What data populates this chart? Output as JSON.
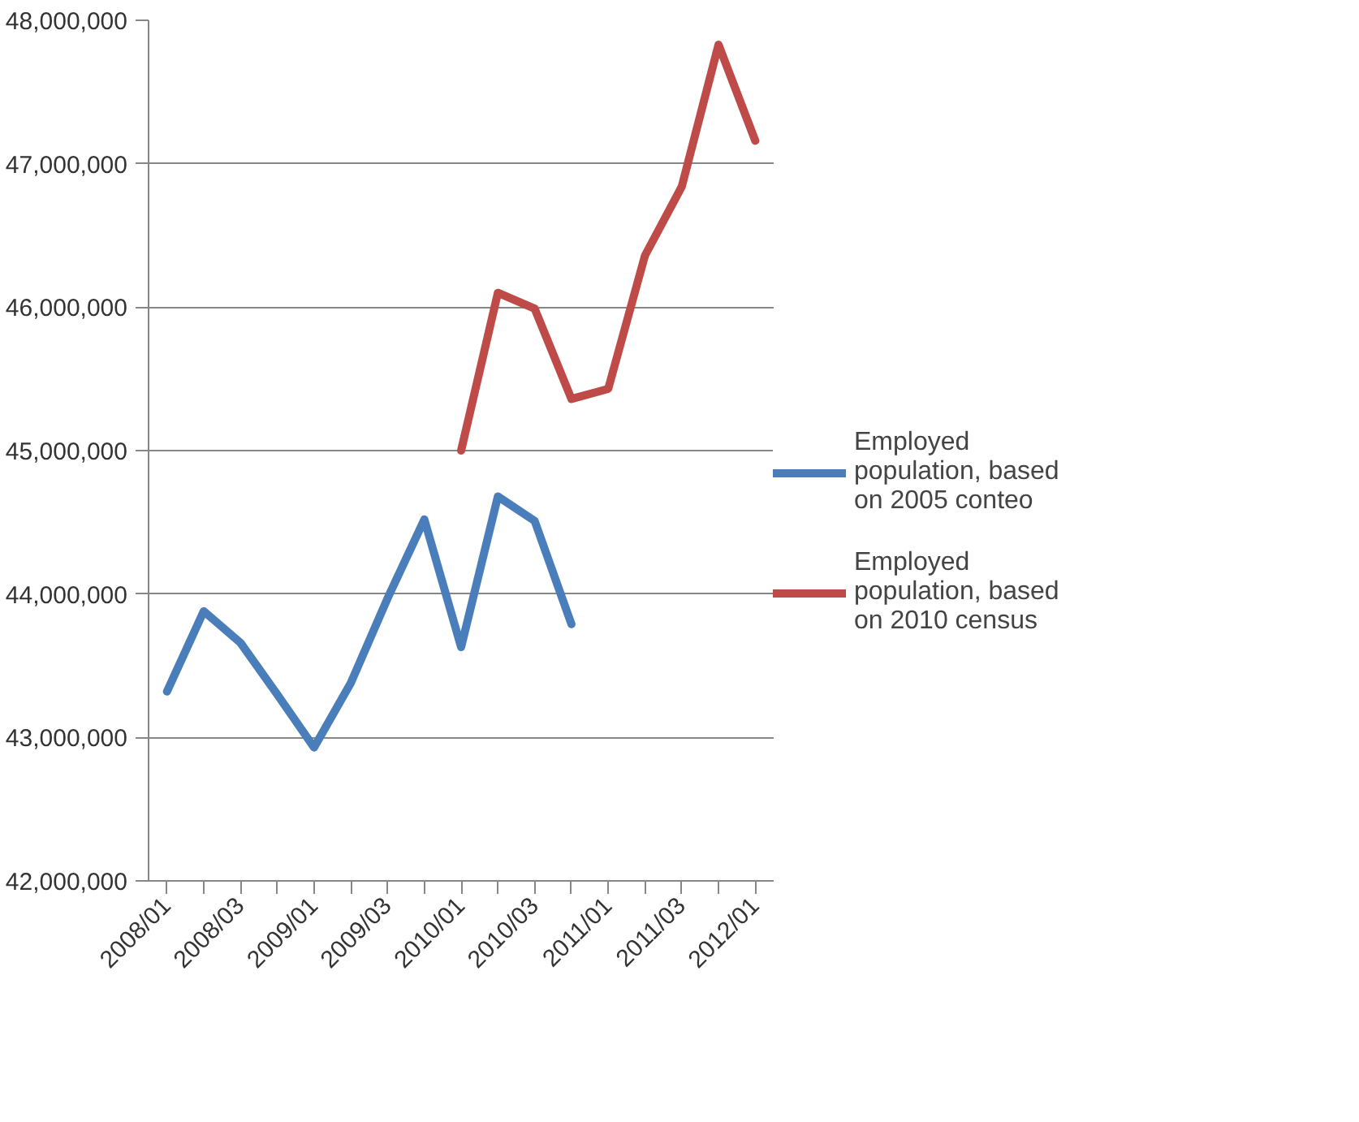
{
  "chart_data": {
    "type": "line",
    "categories": [
      "2008/01",
      null,
      "2008/03",
      null,
      "2009/01",
      null,
      "2009/03",
      null,
      "2010/01",
      null,
      "2010/03",
      null,
      "2011/01",
      null,
      "2011/03",
      null,
      "2012/01"
    ],
    "series": [
      {
        "name": "Employed population, based on 2005 conteo",
        "color": "#4a7ebb",
        "values": [
          43320000,
          43880000,
          43660000,
          43300000,
          42930000,
          43380000,
          43970000,
          44520000,
          43630000,
          44680000,
          44510000,
          43790000,
          null,
          null,
          null,
          null,
          null
        ]
      },
      {
        "name": "Employed population, based on 2010 census",
        "color": "#be4b48",
        "values": [
          null,
          null,
          null,
          null,
          null,
          null,
          null,
          null,
          45000000,
          46100000,
          45990000,
          45360000,
          45430000,
          46360000,
          46840000,
          47830000,
          47160000
        ]
      }
    ],
    "ylim": [
      42000000,
      48000000
    ],
    "yticks": [
      {
        "value": 42000000,
        "label": "42,000,000"
      },
      {
        "value": 43000000,
        "label": "43,000,000"
      },
      {
        "value": 44000000,
        "label": "44,000,000"
      },
      {
        "value": 45000000,
        "label": "45,000,000"
      },
      {
        "value": 46000000,
        "label": "46,000,000"
      },
      {
        "value": 47000000,
        "label": "47,000,000"
      },
      {
        "value": 48000000,
        "label": "48,000,000"
      }
    ],
    "grid": "y",
    "legend": "right",
    "marker": "none",
    "line_style": "solid"
  }
}
